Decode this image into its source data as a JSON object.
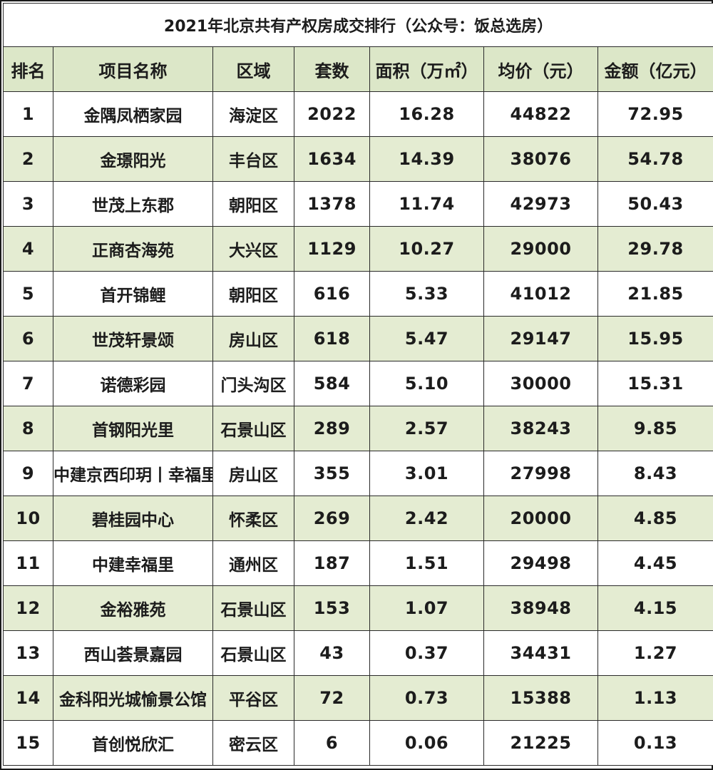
{
  "table": {
    "title": "2021年北京共有产权房成交排行（公众号：饭总选房）",
    "headers": [
      "排名",
      "项目名称",
      "区域",
      "套数",
      "面积（万㎡）",
      "均价（元）",
      "金额（亿元）"
    ],
    "rows": [
      [
        "1",
        "金隅凤栖家园",
        "海淀区",
        "2022",
        "16.28",
        "44822",
        "72.95"
      ],
      [
        "2",
        "金璟阳光",
        "丰台区",
        "1634",
        "14.39",
        "38076",
        "54.78"
      ],
      [
        "3",
        "世茂上东郡",
        "朝阳区",
        "1378",
        "11.74",
        "42973",
        "50.43"
      ],
      [
        "4",
        "正商杏海苑",
        "大兴区",
        "1129",
        "10.27",
        "29000",
        "29.78"
      ],
      [
        "5",
        "首开锦鲤",
        "朝阳区",
        "616",
        "5.33",
        "41012",
        "21.85"
      ],
      [
        "6",
        "世茂轩景颂",
        "房山区",
        "618",
        "5.47",
        "29147",
        "15.95"
      ],
      [
        "7",
        "诺德彩园",
        "门头沟区",
        "584",
        "5.10",
        "30000",
        "15.31"
      ],
      [
        "8",
        "首钢阳光里",
        "石景山区",
        "289",
        "2.57",
        "38243",
        "9.85"
      ],
      [
        "9",
        "中建京西印玥丨幸福里",
        "房山区",
        "355",
        "3.01",
        "27998",
        "8.43"
      ],
      [
        "10",
        "碧桂园中心",
        "怀柔区",
        "269",
        "2.42",
        "20000",
        "4.85"
      ],
      [
        "11",
        "中建幸福里",
        "通州区",
        "187",
        "1.51",
        "29498",
        "4.45"
      ],
      [
        "12",
        "金裕雅苑",
        "石景山区",
        "153",
        "1.07",
        "38948",
        "4.15"
      ],
      [
        "13",
        "西山荟景嘉园",
        "石景山区",
        "43",
        "0.37",
        "34431",
        "1.27"
      ],
      [
        "14",
        "金科阳光城愉景公馆",
        "平谷区",
        "72",
        "0.73",
        "15388",
        "1.13"
      ],
      [
        "15",
        "首创悦欣汇",
        "密云区",
        "6",
        "0.06",
        "21225",
        "0.13"
      ]
    ]
  },
  "colors": {
    "header_bg": "#dce7c8",
    "shaded_row_bg": "#e4ecd2",
    "plain_row_bg": "#ffffff",
    "border": "#2a2a2a"
  }
}
